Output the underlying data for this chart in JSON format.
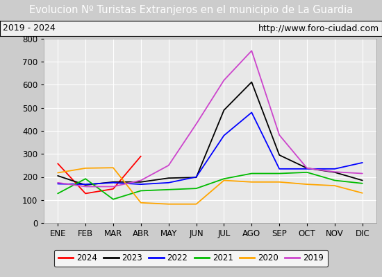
{
  "title": "Evolucion Nº Turistas Extranjeros en el municipio de La Guardia",
  "subtitle_left": "2019 - 2024",
  "subtitle_right": "http://www.foro-ciudad.com",
  "x_labels": [
    "ENE",
    "FEB",
    "MAR",
    "ABR",
    "MAY",
    "JUN",
    "JUL",
    "AGO",
    "SEP",
    "OCT",
    "NOV",
    "DIC"
  ],
  "ylim": [
    0,
    800
  ],
  "yticks": [
    0,
    100,
    200,
    300,
    400,
    500,
    600,
    700,
    800
  ],
  "series": {
    "2024": {
      "color": "#ff0000",
      "values": [
        258,
        128,
        148,
        290,
        null,
        null,
        null,
        null,
        null,
        null,
        null,
        null
      ]
    },
    "2023": {
      "color": "#000000",
      "values": [
        205,
        165,
        178,
        178,
        195,
        198,
        490,
        612,
        295,
        238,
        220,
        185
      ]
    },
    "2022": {
      "color": "#0000ff",
      "values": [
        170,
        168,
        175,
        168,
        175,
        200,
        380,
        480,
        235,
        235,
        235,
        262
      ]
    },
    "2021": {
      "color": "#00bb00",
      "values": [
        128,
        192,
        103,
        140,
        145,
        150,
        192,
        215,
        215,
        220,
        185,
        172
      ]
    },
    "2020": {
      "color": "#ffa500",
      "values": [
        218,
        238,
        240,
        88,
        82,
        82,
        185,
        178,
        178,
        168,
        162,
        130
      ]
    },
    "2019": {
      "color": "#cc44cc",
      "values": [
        175,
        158,
        158,
        185,
        250,
        430,
        620,
        748,
        382,
        238,
        222,
        215
      ]
    }
  },
  "plot_bg": "#e8e8e8",
  "title_bg": "#4472c4",
  "title_color": "#ffffff",
  "subtitle_bg": "#f0f0f0",
  "grid_color": "#ffffff",
  "title_fontsize": 10.5,
  "tick_fontsize": 8.5,
  "legend_fontsize": 8.5
}
